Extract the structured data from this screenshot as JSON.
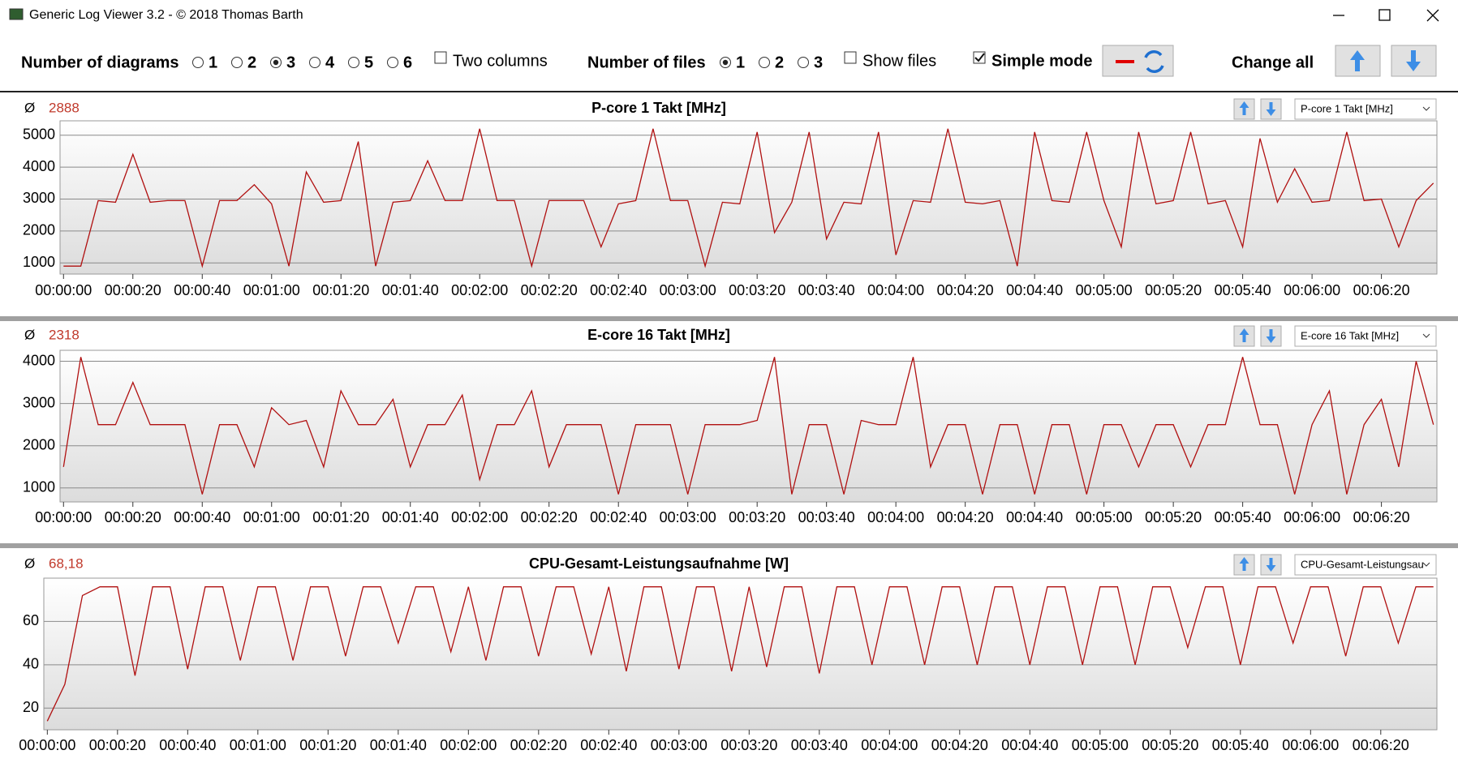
{
  "window": {
    "title": "Generic Log Viewer 3.2 - © 2018 Thomas Barth"
  },
  "toolbar": {
    "diagrams_label": "Number of diagrams",
    "diagram_options": [
      "1",
      "2",
      "3",
      "4",
      "5",
      "6"
    ],
    "diagrams_selected": "3",
    "two_columns": "Two columns",
    "two_columns_checked": false,
    "files_label": "Number of files",
    "file_options": [
      "1",
      "2",
      "3"
    ],
    "files_selected": "1",
    "show_files": "Show files",
    "show_files_checked": false,
    "simple_mode": "Simple mode",
    "simple_mode_checked": true,
    "change_all": "Change all"
  },
  "chart_data": [
    {
      "type": "line",
      "title": "P-core 1 Takt [MHz]",
      "average_symbol": "Ø",
      "average": "2888",
      "dropdown": "P-core 1 Takt [MHz]",
      "x": [
        0,
        5,
        10,
        15,
        20,
        25,
        30,
        35,
        40,
        45,
        50,
        55,
        60,
        65,
        70,
        75,
        80,
        85,
        90,
        95,
        100,
        105,
        110,
        115,
        120,
        125,
        130,
        135,
        140,
        145,
        150,
        155,
        160,
        165,
        170,
        175,
        180,
        185,
        190,
        195,
        200,
        205,
        210,
        215,
        220,
        225,
        230,
        235,
        240,
        245,
        250,
        255,
        260,
        265,
        270,
        275,
        280,
        285,
        290,
        295,
        300,
        305,
        310,
        315,
        320,
        325,
        330,
        335,
        340,
        345,
        350,
        355,
        360,
        365,
        370,
        375,
        380,
        385,
        390,
        395
      ],
      "series": [
        {
          "name": "P-core 1 Takt [MHz]",
          "color": "#b01010",
          "values": [
            900,
            900,
            2950,
            2900,
            4400,
            2900,
            2950,
            2950,
            900,
            2950,
            2950,
            3450,
            2850,
            900,
            3850,
            2900,
            2950,
            4800,
            900,
            2900,
            2950,
            4200,
            2950,
            2950,
            5200,
            2950,
            2950,
            900,
            2950,
            2950,
            2950,
            1500,
            2850,
            2950,
            5200,
            2950,
            2950,
            900,
            2900,
            2850,
            5100,
            1950,
            2900,
            5100,
            1750,
            2900,
            2850,
            5100,
            1250,
            2950,
            2900,
            5200,
            2900,
            2850,
            2950,
            900,
            5100,
            2950,
            2900,
            5100,
            2950,
            1500,
            5100,
            2850,
            2950,
            5100,
            2850,
            2950,
            1500,
            4900,
            2900,
            3950,
            2900,
            2950,
            5100,
            2950,
            3000,
            1500,
            2950,
            3500
          ]
        }
      ],
      "xlim": [
        -1,
        396
      ],
      "ylim": [
        650,
        5450
      ],
      "yticks": [
        1000,
        2000,
        3000,
        4000,
        5000
      ],
      "xticks": [
        {
          "value": 0,
          "label": "00:00:00"
        },
        {
          "value": 20,
          "label": "00:00:20"
        },
        {
          "value": 40,
          "label": "00:00:40"
        },
        {
          "value": 60,
          "label": "00:01:00"
        },
        {
          "value": 80,
          "label": "00:01:20"
        },
        {
          "value": 100,
          "label": "00:01:40"
        },
        {
          "value": 120,
          "label": "00:02:00"
        },
        {
          "value": 140,
          "label": "00:02:20"
        },
        {
          "value": 160,
          "label": "00:02:40"
        },
        {
          "value": 180,
          "label": "00:03:00"
        },
        {
          "value": 200,
          "label": "00:03:20"
        },
        {
          "value": 220,
          "label": "00:03:40"
        },
        {
          "value": 240,
          "label": "00:04:00"
        },
        {
          "value": 260,
          "label": "00:04:20"
        },
        {
          "value": 280,
          "label": "00:04:40"
        },
        {
          "value": 300,
          "label": "00:05:00"
        },
        {
          "value": 320,
          "label": "00:05:20"
        },
        {
          "value": 340,
          "label": "00:05:40"
        },
        {
          "value": 360,
          "label": "00:06:00"
        },
        {
          "value": 380,
          "label": "00:06:20"
        }
      ],
      "grid": true
    },
    {
      "type": "line",
      "title": "E-core 16 Takt [MHz]",
      "average_symbol": "Ø",
      "average": "2318",
      "dropdown": "E-core 16 Takt [MHz]",
      "x": [
        0,
        5,
        10,
        15,
        20,
        25,
        30,
        35,
        40,
        45,
        50,
        55,
        60,
        65,
        70,
        75,
        80,
        85,
        90,
        95,
        100,
        105,
        110,
        115,
        120,
        125,
        130,
        135,
        140,
        145,
        150,
        155,
        160,
        165,
        170,
        175,
        180,
        185,
        190,
        195,
        200,
        205,
        210,
        215,
        220,
        225,
        230,
        235,
        240,
        245,
        250,
        255,
        260,
        265,
        270,
        275,
        280,
        285,
        290,
        295,
        300,
        305,
        310,
        315,
        320,
        325,
        330,
        335,
        340,
        345,
        350,
        355,
        360,
        365,
        370,
        375,
        380,
        385,
        390,
        395
      ],
      "series": [
        {
          "name": "E-core 16 Takt [MHz]",
          "color": "#b01010",
          "values": [
            1500,
            4100,
            2500,
            2500,
            3500,
            2500,
            2500,
            2500,
            850,
            2500,
            2500,
            1500,
            2900,
            2500,
            2600,
            1500,
            3300,
            2500,
            2500,
            3100,
            1500,
            2500,
            2500,
            3200,
            1200,
            2500,
            2500,
            3300,
            1500,
            2500,
            2500,
            2500,
            850,
            2500,
            2500,
            2500,
            850,
            2500,
            2500,
            2500,
            2600,
            4100,
            850,
            2500,
            2500,
            850,
            2600,
            2500,
            2500,
            4100,
            1500,
            2500,
            2500,
            850,
            2500,
            2500,
            850,
            2500,
            2500,
            850,
            2500,
            2500,
            1500,
            2500,
            2500,
            1500,
            2500,
            2500,
            4100,
            2500,
            2500,
            850,
            2500,
            3300,
            850,
            2500,
            3100,
            1500,
            4000,
            2500
          ]
        }
      ],
      "xlim": [
        -1,
        396
      ],
      "ylim": [
        670,
        4260
      ],
      "yticks": [
        1000,
        2000,
        3000,
        4000
      ],
      "xticks": [
        {
          "value": 0,
          "label": "00:00:00"
        },
        {
          "value": 20,
          "label": "00:00:20"
        },
        {
          "value": 40,
          "label": "00:00:40"
        },
        {
          "value": 60,
          "label": "00:01:00"
        },
        {
          "value": 80,
          "label": "00:01:20"
        },
        {
          "value": 100,
          "label": "00:01:40"
        },
        {
          "value": 120,
          "label": "00:02:00"
        },
        {
          "value": 140,
          "label": "00:02:20"
        },
        {
          "value": 160,
          "label": "00:02:40"
        },
        {
          "value": 180,
          "label": "00:03:00"
        },
        {
          "value": 200,
          "label": "00:03:20"
        },
        {
          "value": 220,
          "label": "00:03:40"
        },
        {
          "value": 240,
          "label": "00:04:00"
        },
        {
          "value": 260,
          "label": "00:04:20"
        },
        {
          "value": 280,
          "label": "00:04:40"
        },
        {
          "value": 300,
          "label": "00:05:00"
        },
        {
          "value": 320,
          "label": "00:05:20"
        },
        {
          "value": 340,
          "label": "00:05:40"
        },
        {
          "value": 360,
          "label": "00:06:00"
        },
        {
          "value": 380,
          "label": "00:06:20"
        }
      ],
      "grid": true
    },
    {
      "type": "line",
      "title": "CPU-Gesamt-Leistungsaufnahme [W]",
      "average_symbol": "Ø",
      "average": "68,18",
      "dropdown": "CPU-Gesamt-Leistungsau",
      "x": [
        0,
        5,
        10,
        15,
        20,
        25,
        30,
        35,
        40,
        45,
        50,
        55,
        60,
        65,
        70,
        75,
        80,
        85,
        90,
        95,
        100,
        105,
        110,
        115,
        120,
        125,
        130,
        135,
        140,
        145,
        150,
        155,
        160,
        165,
        170,
        175,
        180,
        185,
        190,
        195,
        200,
        205,
        210,
        215,
        220,
        225,
        230,
        235,
        240,
        245,
        250,
        255,
        260,
        265,
        270,
        275,
        280,
        285,
        290,
        295,
        300,
        305,
        310,
        315,
        320,
        325,
        330,
        335,
        340,
        345,
        350,
        355,
        360,
        365,
        370,
        375,
        380,
        385,
        390,
        395
      ],
      "series": [
        {
          "name": "CPU-Gesamt-Leistungsaufnahme [W]",
          "color": "#b01010",
          "values": [
            14,
            31,
            72,
            76,
            76,
            35,
            76,
            76,
            38,
            76,
            76,
            42,
            76,
            76,
            42,
            76,
            76,
            44,
            76,
            76,
            50,
            76,
            76,
            46,
            76,
            42,
            76,
            76,
            44,
            76,
            76,
            45,
            76,
            37,
            76,
            76,
            38,
            76,
            76,
            37,
            76,
            39,
            76,
            76,
            36,
            76,
            76,
            40,
            76,
            76,
            40,
            76,
            76,
            40,
            76,
            76,
            40,
            76,
            76,
            40,
            76,
            76,
            40,
            76,
            76,
            48,
            76,
            76,
            40,
            76,
            76,
            50,
            76,
            76,
            44,
            76,
            76,
            50,
            76,
            76
          ]
        }
      ],
      "xlim": [
        -1,
        396
      ],
      "ylim": [
        10,
        80
      ],
      "yticks": [
        20,
        40,
        60
      ],
      "xticks": [
        {
          "value": 0,
          "label": "00:00:00"
        },
        {
          "value": 20,
          "label": "00:00:20"
        },
        {
          "value": 40,
          "label": "00:00:40"
        },
        {
          "value": 60,
          "label": "00:01:00"
        },
        {
          "value": 80,
          "label": "00:01:20"
        },
        {
          "value": 100,
          "label": "00:01:40"
        },
        {
          "value": 120,
          "label": "00:02:00"
        },
        {
          "value": 140,
          "label": "00:02:20"
        },
        {
          "value": 160,
          "label": "00:02:40"
        },
        {
          "value": 180,
          "label": "00:03:00"
        },
        {
          "value": 200,
          "label": "00:03:20"
        },
        {
          "value": 220,
          "label": "00:03:40"
        },
        {
          "value": 240,
          "label": "00:04:00"
        },
        {
          "value": 260,
          "label": "00:04:20"
        },
        {
          "value": 280,
          "label": "00:04:40"
        },
        {
          "value": 300,
          "label": "00:05:00"
        },
        {
          "value": 320,
          "label": "00:05:20"
        },
        {
          "value": 340,
          "label": "00:05:40"
        },
        {
          "value": 360,
          "label": "00:06:00"
        },
        {
          "value": 380,
          "label": "00:06:20"
        }
      ],
      "grid": true
    }
  ]
}
